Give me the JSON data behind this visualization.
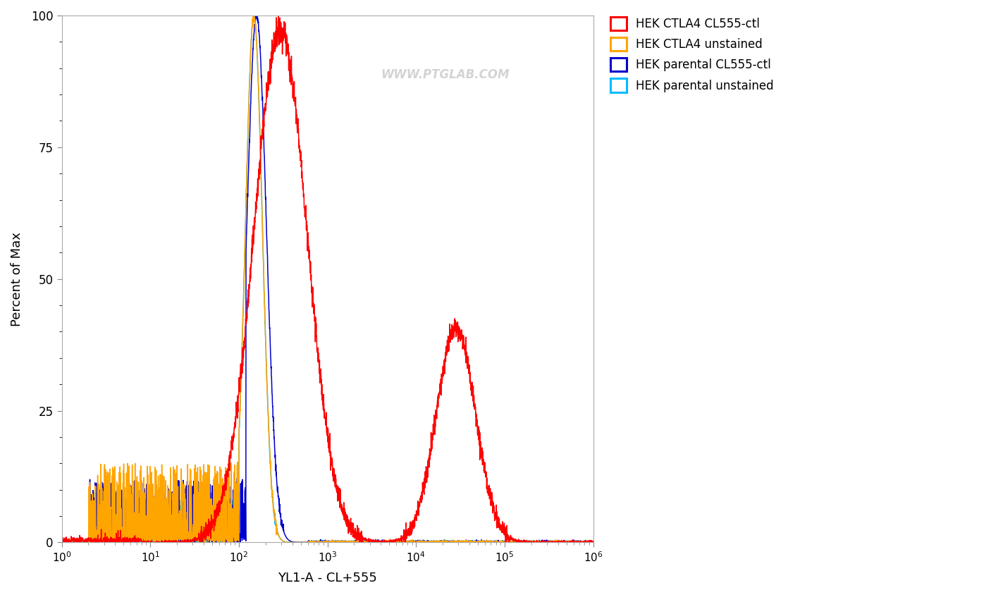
{
  "xlabel": "YL1-A - CL+555",
  "ylabel": "Percent of Max",
  "watermark": "WWW.PTGLAB.COM",
  "ylim": [
    0,
    100
  ],
  "yticks": [
    0,
    25,
    50,
    75,
    100
  ],
  "legend_entries": [
    {
      "label": "HEK CTLA4 CL555-ctl",
      "color": "#FF0000"
    },
    {
      "label": "HEK CTLA4 unstained",
      "color": "#FFA500"
    },
    {
      "label": "HEK parental CL555-ctl",
      "color": "#0000CC"
    },
    {
      "label": "HEK parental unstained",
      "color": "#00BBFF"
    }
  ],
  "background_color": "#FFFFFF",
  "line_width": 1.1,
  "seed": 42
}
